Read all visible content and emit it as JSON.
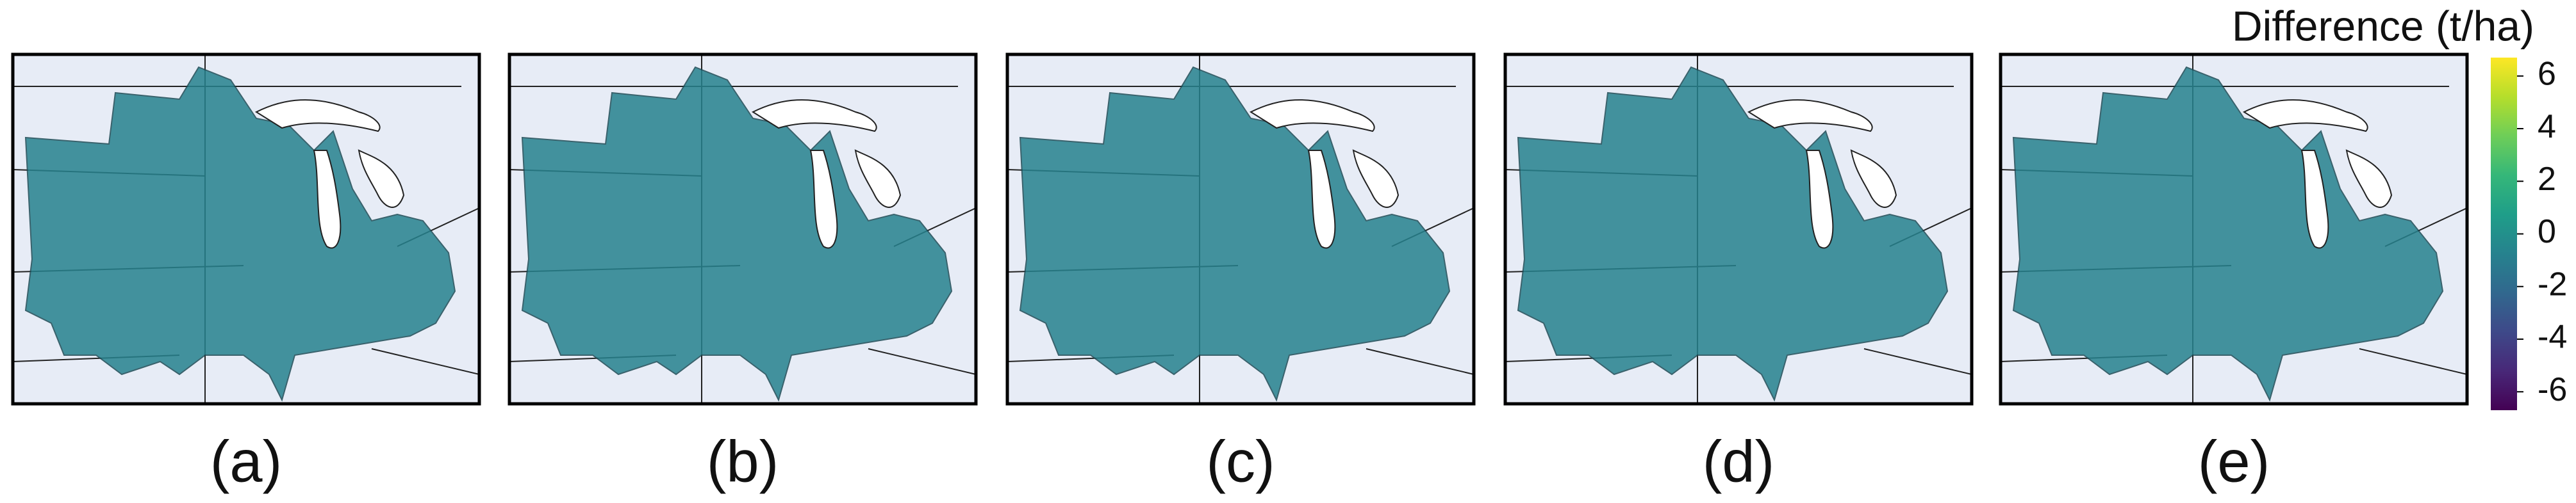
{
  "chart_data": {
    "type": "choropleth",
    "panels": [
      "(a)",
      "(b)",
      "(c)",
      "(d)",
      "(e)"
    ],
    "colorbar": {
      "title": "Difference (t/ha)",
      "lim": [
        -6.7,
        6.7
      ],
      "ticks": [
        -6,
        -4,
        -2,
        0,
        2,
        4,
        6
      ],
      "colormap": "viridis"
    }
  }
}
